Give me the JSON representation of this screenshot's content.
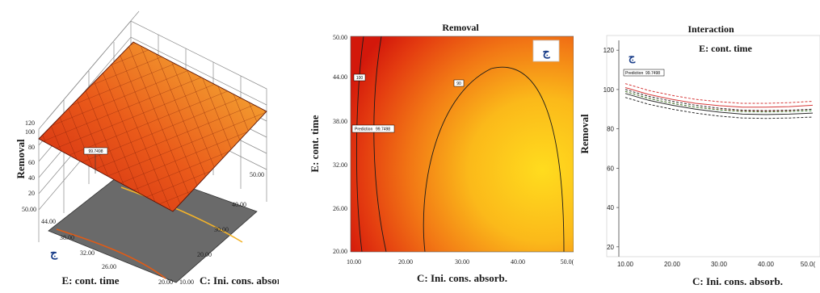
{
  "chart_data": [
    {
      "type": "surface",
      "title": "",
      "xlabel": "C: Ini. cons. absorb.",
      "ylabel": "E: cont. time",
      "zlabel": "Removal",
      "x_ticks": [
        "20.00",
        "10.00",
        "20.00",
        "30.00",
        "40.00",
        "50.00"
      ],
      "y_ticks": [
        "50.00",
        "44.00",
        "38.00",
        "32.00",
        "26.00"
      ],
      "z_ticks": [
        "120",
        "100",
        "80",
        "60",
        "40",
        "20"
      ],
      "marker_label": "99.7498",
      "factor_glyph": "ج",
      "colors": {
        "high": "#d42a10",
        "low": "#f5b530",
        "floor": "#6a6a6a"
      }
    },
    {
      "type": "contour",
      "title": "Removal",
      "xlabel": "C: Ini. cons. absorb.",
      "ylabel": "E: cont. time",
      "x_ticks": [
        "10.00",
        "20.00",
        "30.00",
        "40.00",
        "50.0("
      ],
      "y_ticks": [
        "50.00",
        "44.00",
        "38.00",
        "32.00",
        "26.00",
        "20.00"
      ],
      "xlim": [
        10,
        50
      ],
      "ylim": [
        20,
        50
      ],
      "contour_labels": [
        "100",
        "90"
      ],
      "prediction": {
        "label": "Prediction",
        "value": "99.7498",
        "x": 10,
        "y": 37.2
      },
      "factor_glyph": "ج",
      "colors": {
        "high": "#d91f0c",
        "mid": "#f47a14",
        "low": "#ffd21c"
      }
    },
    {
      "type": "line",
      "title": "Interaction",
      "subtitle": "E: cont. time",
      "xlabel": "C: Ini. cons. absorb.",
      "ylabel": "Removal",
      "x_ticks": [
        "10.00",
        "20.00",
        "30.00",
        "40.00",
        "50.0("
      ],
      "y_ticks": [
        "120",
        "100",
        "80",
        "60",
        "40",
        "20"
      ],
      "xlim": [
        10,
        50
      ],
      "ylim": [
        15,
        125
      ],
      "x": [
        10,
        15,
        20,
        25,
        30,
        35,
        40,
        45,
        50
      ],
      "series": [
        {
          "values": [
            101,
            97.5,
            95,
            93,
            91.8,
            91,
            91,
            91.3,
            92
          ],
          "color": "#d63a3a",
          "style": "solid"
        },
        {
          "values": [
            103,
            99.5,
            97,
            95,
            93.8,
            93,
            93,
            93.3,
            94
          ],
          "color": "#d63a3a",
          "style": "dashed"
        },
        {
          "values": [
            99,
            95.5,
            93,
            91,
            89.8,
            89,
            89,
            89.3,
            90
          ],
          "color": "#d63a3a",
          "style": "dashed"
        },
        {
          "values": [
            98,
            94.5,
            92,
            90,
            88.5,
            87.5,
            87.3,
            87.5,
            88
          ],
          "color": "#2b2b2b",
          "style": "solid"
        },
        {
          "values": [
            100,
            96.5,
            94,
            92,
            90.5,
            89.5,
            89.3,
            89.5,
            90
          ],
          "color": "#2b2b2b",
          "style": "dashed"
        },
        {
          "values": [
            96,
            92.5,
            90,
            88,
            86.5,
            85.5,
            85.3,
            85.5,
            86
          ],
          "color": "#2b2b2b",
          "style": "dashed"
        },
        {
          "values": [
            99,
            95.5,
            93,
            91,
            89.6,
            88.8,
            88.6,
            88.8,
            89.3
          ],
          "color": "#3c8a3c",
          "style": "dashed"
        }
      ],
      "prediction": {
        "label": "Prediction",
        "value": "99.7498",
        "x": 10,
        "y": 99.75
      },
      "factor_glyph": "ج"
    }
  ]
}
